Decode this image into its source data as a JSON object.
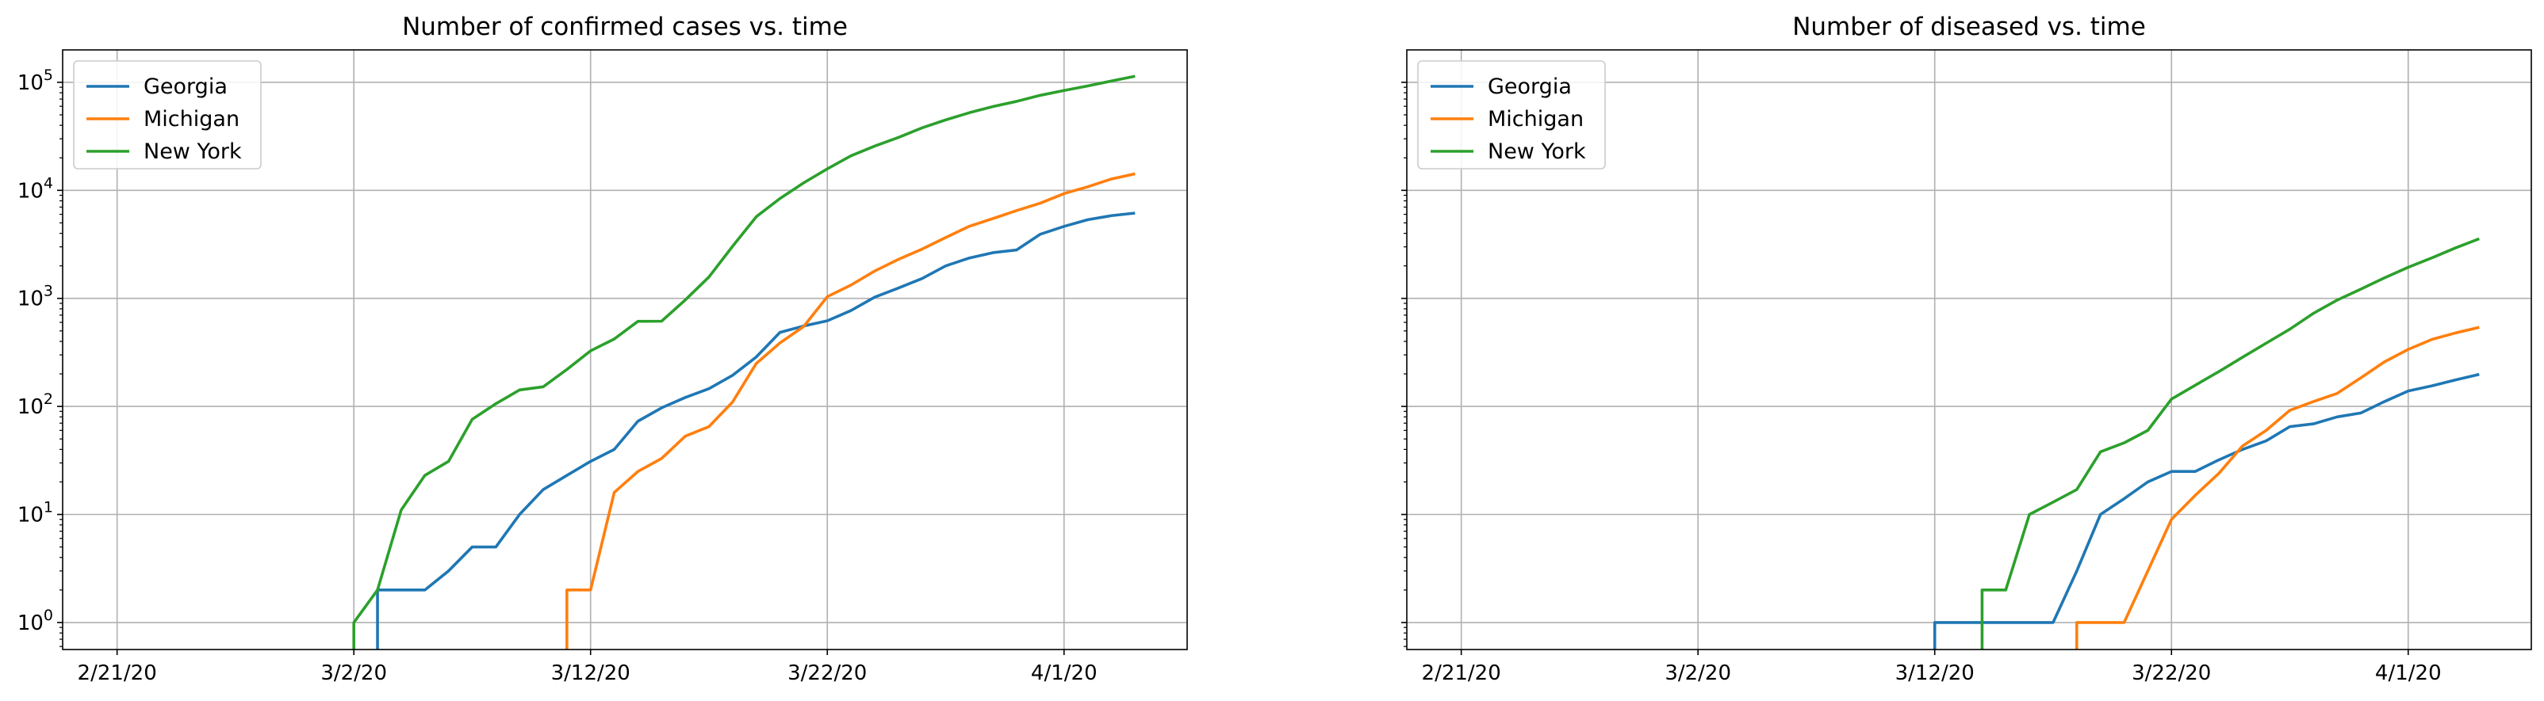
{
  "chart_data": [
    {
      "type": "line",
      "title": "Number of confirmed cases vs. time",
      "xlabel": "",
      "ylabel": "",
      "yscale": "log",
      "grid": true,
      "legend_position": "top-left",
      "x_ticks": [
        {
          "day": 0,
          "label": "2/21/20"
        },
        {
          "day": 10,
          "label": "3/2/20"
        },
        {
          "day": 20,
          "label": "3/12/20"
        },
        {
          "day": 30,
          "label": "3/22/20"
        },
        {
          "day": 40,
          "label": "4/1/20"
        }
      ],
      "y_ticks": [
        {
          "base": "10",
          "exp": "0",
          "value": 1
        },
        {
          "base": "10",
          "exp": "1",
          "value": 10
        },
        {
          "base": "10",
          "exp": "2",
          "value": 100
        },
        {
          "base": "10",
          "exp": "3",
          "value": 1000
        },
        {
          "base": "10",
          "exp": "4",
          "value": 10000
        },
        {
          "base": "10",
          "exp": "5",
          "value": 100000
        }
      ],
      "xlim": [
        -2.3,
        45.2
      ],
      "ylim_log10": [
        -0.25,
        5.3
      ],
      "series": [
        {
          "name": "Georgia",
          "color": "#1f77b4",
          "start_day": 11,
          "values": [
            2,
            2,
            2,
            3,
            5,
            5,
            10,
            17,
            23,
            31,
            40,
            73,
            97,
            121,
            146,
            194,
            287,
            485,
            555,
            620,
            772,
            1026,
            1247,
            1525,
            2000,
            2366,
            2651,
            2809,
            3929,
            4638,
            5348,
            5831,
            6160
          ]
        },
        {
          "name": "Michigan",
          "color": "#ff7f0e",
          "start_day": 19,
          "values": [
            2,
            2,
            16,
            25,
            33,
            53,
            65,
            110,
            250,
            387,
            549,
            1037,
            1329,
            1791,
            2295,
            2856,
            3657,
            4650,
            5486,
            6498,
            7615,
            9334,
            10791,
            12744,
            14225
          ]
        },
        {
          "name": "New York",
          "color": "#2ca02c",
          "start_day": 10,
          "values": [
            1,
            2,
            11,
            23,
            31,
            76,
            106,
            142,
            152,
            220,
            327,
            421,
            613,
            615,
            967,
            1578,
            3038,
            5704,
            8403,
            11727,
            15800,
            20884,
            25681,
            30841,
            37877,
            44876,
            52318,
            59648,
            66663,
            75833,
            83948,
            92506,
            102870,
            113833
          ]
        }
      ]
    },
    {
      "type": "line",
      "title": "Number of diseased vs. time",
      "xlabel": "",
      "ylabel": "",
      "yscale": "log",
      "grid": true,
      "legend_position": "top-left",
      "x_ticks": [
        {
          "day": 0,
          "label": "2/21/20"
        },
        {
          "day": 10,
          "label": "3/2/20"
        },
        {
          "day": 20,
          "label": "3/12/20"
        },
        {
          "day": 30,
          "label": "3/22/20"
        },
        {
          "day": 40,
          "label": "4/1/20"
        }
      ],
      "y_ticks": [
        {
          "base": "10",
          "exp": "0",
          "value": 1
        },
        {
          "base": "10",
          "exp": "1",
          "value": 10
        },
        {
          "base": "10",
          "exp": "2",
          "value": 100
        },
        {
          "base": "10",
          "exp": "3",
          "value": 1000
        },
        {
          "base": "10",
          "exp": "4",
          "value": 10000
        },
        {
          "base": "10",
          "exp": "5",
          "value": 100000
        }
      ],
      "xlim": [
        -2.3,
        45.2
      ],
      "ylim_log10": [
        -0.25,
        5.3
      ],
      "series": [
        {
          "name": "Georgia",
          "color": "#1f77b4",
          "start_day": 20,
          "values": [
            1,
            1,
            1,
            1,
            1,
            1,
            3,
            10,
            14,
            20,
            25,
            25,
            32,
            40,
            48,
            65,
            69,
            80,
            87,
            111,
            139,
            155,
            176,
            198
          ]
        },
        {
          "name": "Michigan",
          "color": "#ff7f0e",
          "start_day": 26,
          "values": [
            1,
            1,
            1,
            3,
            9,
            15,
            24,
            43,
            60,
            92,
            111,
            132,
            184,
            259,
            337,
            417,
            479,
            540
          ]
        },
        {
          "name": "New York",
          "color": "#2ca02c",
          "start_day": 22,
          "values": [
            2,
            2,
            10,
            13,
            17,
            38,
            46,
            60,
            117,
            157,
            210,
            285,
            385,
            519,
            728,
            965,
            1218,
            1550,
            1941,
            2373,
            2935,
            3565
          ]
        }
      ]
    }
  ]
}
